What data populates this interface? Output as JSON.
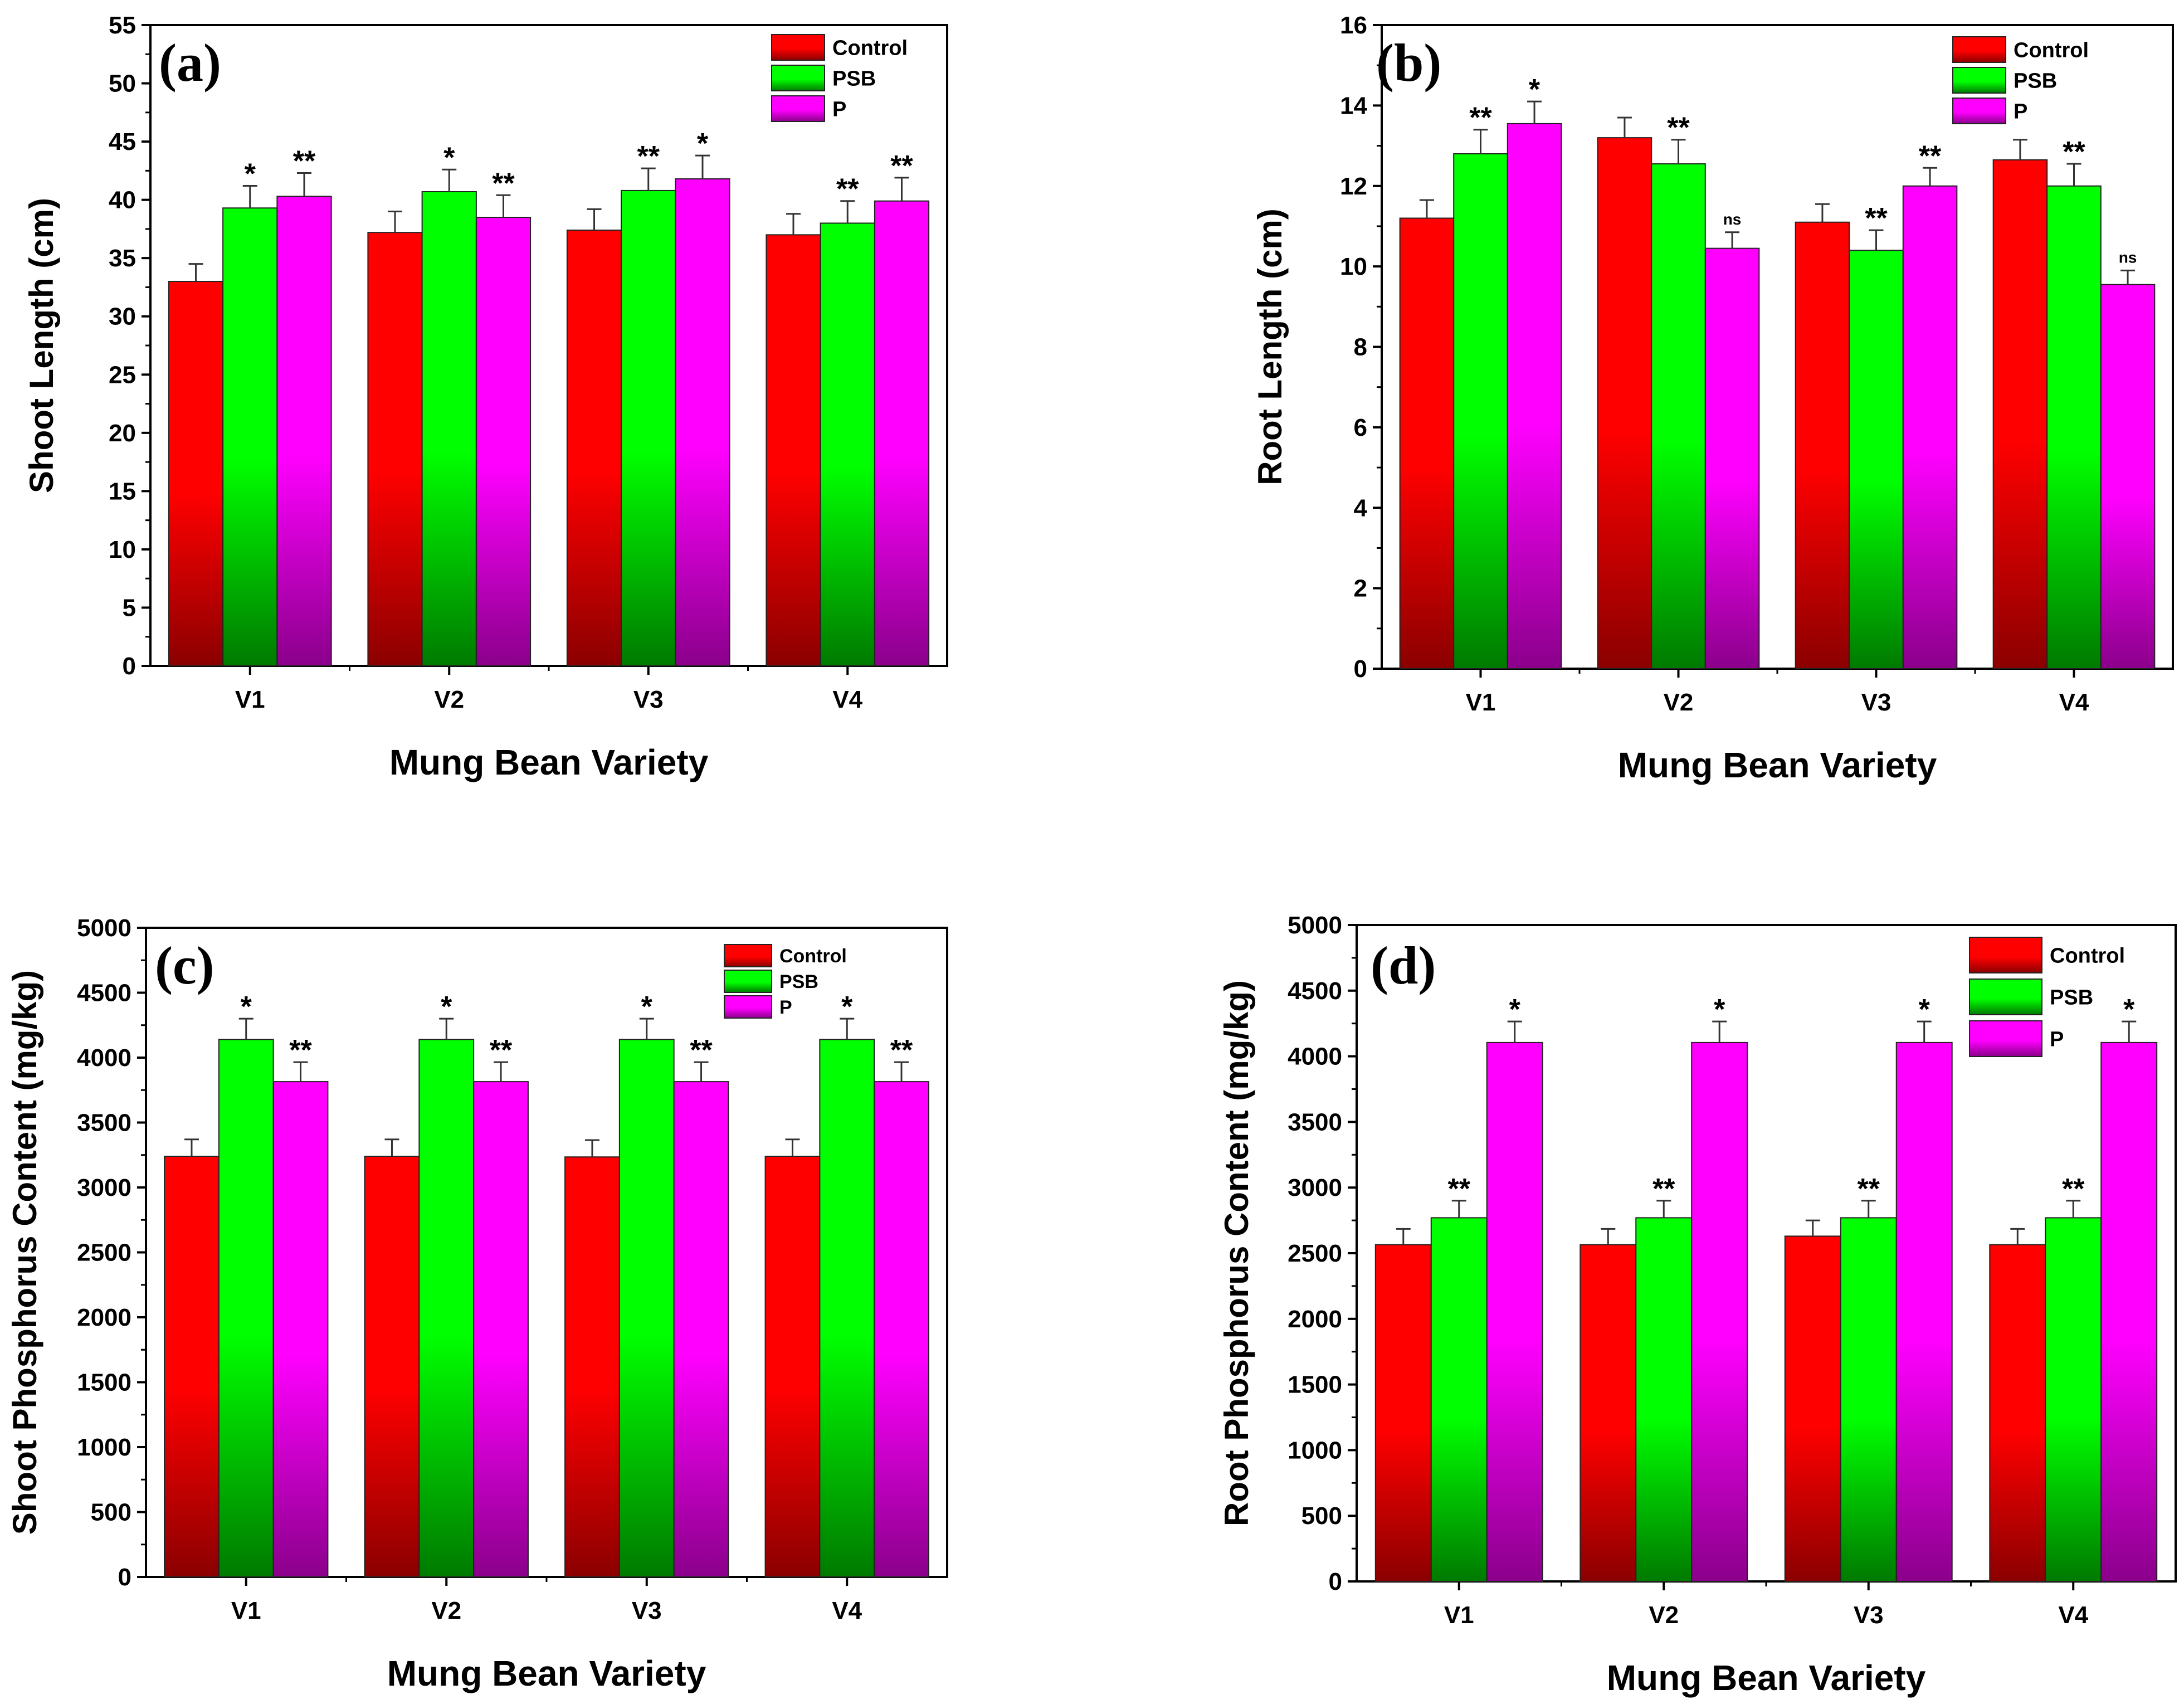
{
  "chart_data": [
    {
      "type": "bar",
      "panel_label": "(a)",
      "xlabel": "Mung Bean Variety",
      "ylabel": "Shoot Length (cm)",
      "ylim": [
        0,
        55
      ],
      "yticks": [
        "0",
        "5",
        "10",
        "15",
        "20",
        "25",
        "30",
        "35",
        "40",
        "45",
        "50",
        "55"
      ],
      "categories": [
        "V1",
        "V2",
        "V3",
        "V4"
      ],
      "legend_position": "top-right",
      "series": [
        {
          "name": "Control",
          "color_top": "#ff0000",
          "color_bottom": "#8b0000",
          "values": [
            33.0,
            37.2,
            37.4,
            37.0
          ],
          "errors": [
            1.5,
            1.8,
            1.8,
            1.8
          ],
          "sig": [
            "",
            "",
            "",
            ""
          ]
        },
        {
          "name": "PSB",
          "color_top": "#00ff00",
          "color_bottom": "#007a00",
          "values": [
            39.3,
            40.7,
            40.8,
            38.0
          ],
          "errors": [
            1.9,
            1.9,
            1.9,
            1.9
          ],
          "sig": [
            "*",
            "*",
            "**",
            "**"
          ]
        },
        {
          "name": "P",
          "color_top": "#ff00ff",
          "color_bottom": "#8b008b",
          "values": [
            40.3,
            38.5,
            41.8,
            39.9
          ],
          "errors": [
            2.0,
            1.9,
            2.0,
            2.0
          ],
          "sig": [
            "**",
            "**",
            "*",
            "**"
          ]
        }
      ]
    },
    {
      "type": "bar",
      "panel_label": "(b)",
      "xlabel": "Mung Bean Variety",
      "ylabel": "Root Length (cm)",
      "ylim": [
        0,
        16
      ],
      "yticks": [
        "0",
        "2",
        "4",
        "6",
        "8",
        "10",
        "12",
        "14",
        "16"
      ],
      "categories": [
        "V1",
        "V2",
        "V3",
        "V4"
      ],
      "legend_position": "top-right",
      "series": [
        {
          "name": "Control",
          "color_top": "#ff0000",
          "color_bottom": "#8b0000",
          "values": [
            11.2,
            13.2,
            11.1,
            12.65
          ],
          "errors": [
            0.45,
            0.5,
            0.45,
            0.5
          ],
          "sig": [
            "",
            "",
            "",
            ""
          ]
        },
        {
          "name": "PSB",
          "color_top": "#00ff00",
          "color_bottom": "#007a00",
          "values": [
            12.8,
            12.55,
            10.4,
            12.0
          ],
          "errors": [
            0.6,
            0.6,
            0.5,
            0.55
          ],
          "sig": [
            "**",
            "**",
            "**",
            "**"
          ]
        },
        {
          "name": "P",
          "color_top": "#ff00ff",
          "color_bottom": "#8b008b",
          "values": [
            13.55,
            10.45,
            12.0,
            9.55
          ],
          "errors": [
            0.55,
            0.4,
            0.45,
            0.35
          ],
          "sig": [
            "*",
            "ns",
            "**",
            "ns"
          ]
        }
      ]
    },
    {
      "type": "bar",
      "panel_label": "(c)",
      "xlabel": "Mung Bean Variety",
      "ylabel": "Shoot Phosphorus Content (mg/kg)",
      "ylim": [
        0,
        5000
      ],
      "yticks": [
        "0",
        "500",
        "1000",
        "1500",
        "2000",
        "2500",
        "3000",
        "3500",
        "4000",
        "4500",
        "5000"
      ],
      "categories": [
        "V1",
        "V2",
        "V3",
        "V4"
      ],
      "legend_position": "top-right",
      "series": [
        {
          "name": "Control",
          "color_top": "#ff0000",
          "color_bottom": "#8b0000",
          "values": [
            3240,
            3240,
            3235,
            3240
          ],
          "errors": [
            130,
            130,
            130,
            130
          ],
          "sig": [
            "",
            "",
            "",
            ""
          ]
        },
        {
          "name": "PSB",
          "color_top": "#00ff00",
          "color_bottom": "#007a00",
          "values": [
            4140,
            4140,
            4140,
            4140
          ],
          "errors": [
            160,
            160,
            160,
            160
          ],
          "sig": [
            "*",
            "*",
            "*",
            "*"
          ]
        },
        {
          "name": "P",
          "color_top": "#ff00ff",
          "color_bottom": "#8b008b",
          "values": [
            3815,
            3815,
            3815,
            3815
          ],
          "errors": [
            150,
            150,
            150,
            150
          ],
          "sig": [
            "**",
            "**",
            "**",
            "**"
          ]
        }
      ]
    },
    {
      "type": "bar",
      "panel_label": "(d)",
      "xlabel": "Mung Bean Variety",
      "ylabel": "Root Phosphorus Content (mg/kg)",
      "ylim": [
        0,
        5000
      ],
      "yticks": [
        "0",
        "500",
        "1000",
        "1500",
        "2000",
        "2500",
        "3000",
        "3500",
        "4000",
        "4500",
        "5000"
      ],
      "categories": [
        "V1",
        "V2",
        "V3",
        "V4"
      ],
      "legend_position": "top-right",
      "series": [
        {
          "name": "Control",
          "color_top": "#ff0000",
          "color_bottom": "#8b0000",
          "values": [
            2565,
            2565,
            2630,
            2565
          ],
          "errors": [
            120,
            120,
            120,
            120
          ],
          "sig": [
            "",
            "",
            "",
            ""
          ]
        },
        {
          "name": "PSB",
          "color_top": "#00ff00",
          "color_bottom": "#007a00",
          "values": [
            2770,
            2770,
            2770,
            2770
          ],
          "errors": [
            130,
            130,
            130,
            130
          ],
          "sig": [
            "**",
            "**",
            "**",
            "**"
          ]
        },
        {
          "name": "P",
          "color_top": "#ff00ff",
          "color_bottom": "#8b008b",
          "values": [
            4105,
            4105,
            4105,
            4105
          ],
          "errors": [
            160,
            160,
            160,
            160
          ],
          "sig": [
            "*",
            "*",
            "*",
            "*"
          ]
        }
      ]
    }
  ]
}
